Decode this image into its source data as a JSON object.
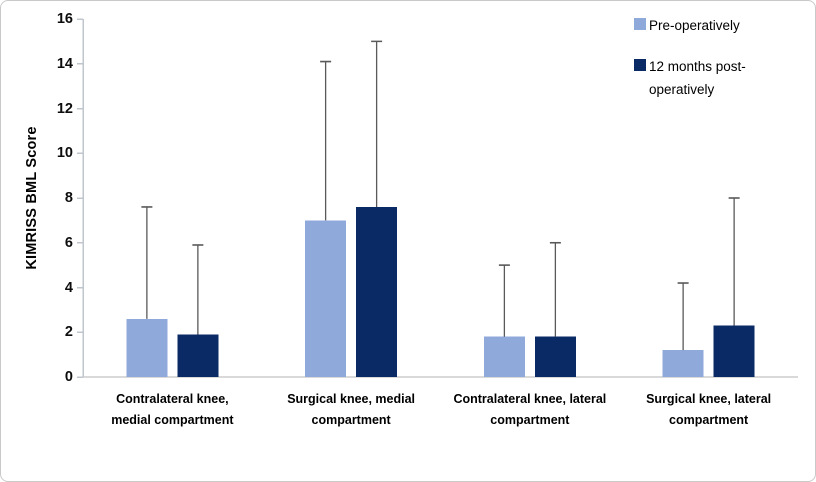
{
  "figure": {
    "background": "#ffffff",
    "border_color": "#c9c9c9"
  },
  "chart_data": {
    "type": "bar",
    "ylabel": "KIMRISS BML Score",
    "xlabel": "",
    "ylim": [
      0,
      16
    ],
    "yticks": [
      0,
      2,
      4,
      6,
      8,
      10,
      12,
      14,
      16
    ],
    "grid": false,
    "legend_position": "top-right",
    "categories": [
      [
        "Contralateral knee,",
        "medial compartment"
      ],
      [
        "Surgical knee, medial",
        "compartment"
      ],
      [
        "Contralateral knee, lateral",
        "compartment"
      ],
      [
        "Surgical knee, lateral",
        "compartment"
      ]
    ],
    "series": [
      {
        "name": "Pre-operatively",
        "color": "#8FA9DB",
        "values": [
          2.6,
          7.0,
          1.8,
          1.2
        ],
        "whisker_top": [
          7.6,
          14.1,
          5.0,
          4.2
        ]
      },
      {
        "name": "12 months post-operatively",
        "color": "#0A2A66",
        "values": [
          1.9,
          7.6,
          1.8,
          2.3
        ],
        "whisker_top": [
          5.9,
          15.0,
          6.0,
          8.0
        ]
      }
    ],
    "error_bars": {
      "direction": "plus",
      "color": "#595959"
    },
    "axis_color": "#C0C6CE",
    "baseline_color": "#D9D9D9"
  }
}
